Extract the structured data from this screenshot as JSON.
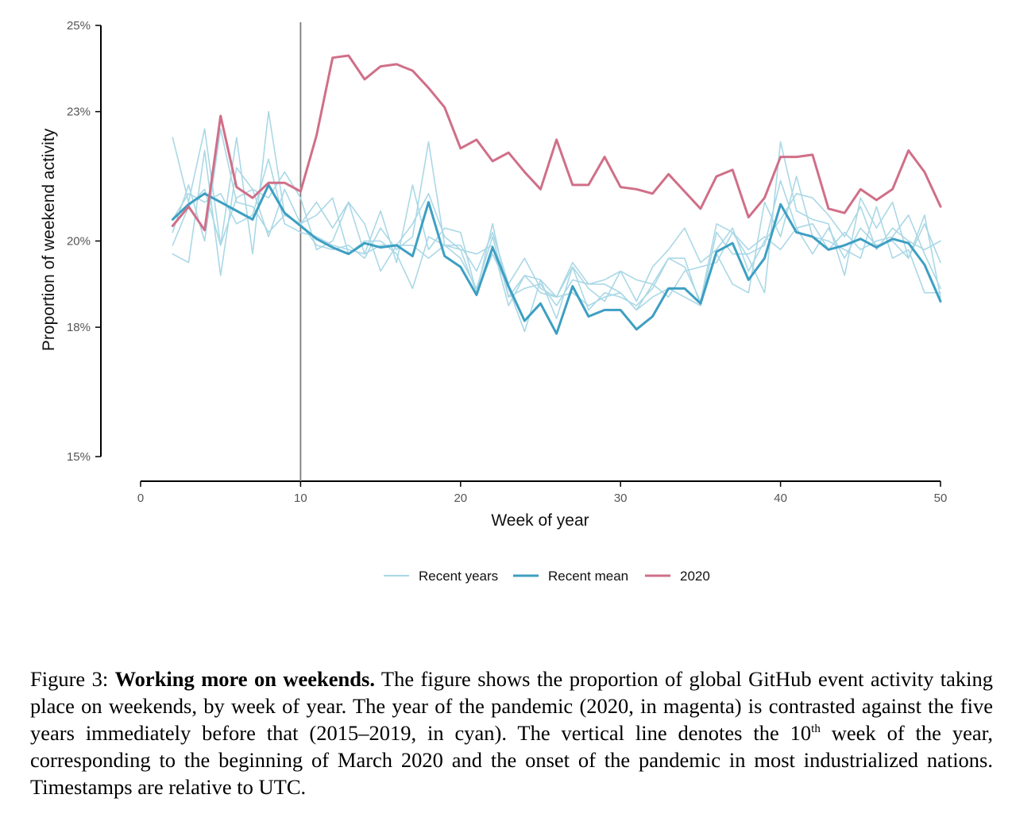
{
  "chart_data": {
    "type": "line",
    "x": [
      2,
      3,
      4,
      5,
      6,
      7,
      8,
      9,
      10,
      11,
      12,
      13,
      14,
      15,
      16,
      17,
      18,
      19,
      20,
      21,
      22,
      23,
      24,
      25,
      26,
      27,
      28,
      29,
      30,
      31,
      32,
      33,
      34,
      35,
      36,
      37,
      38,
      39,
      40,
      41,
      42,
      43,
      44,
      45,
      46,
      47,
      48,
      49,
      50
    ],
    "xlabel": "Week of year",
    "ylabel": "Proportion of weekend activity",
    "x_ticks": [
      0,
      10,
      20,
      30,
      40,
      50
    ],
    "x_tick_labels": [
      "0",
      "10",
      "20",
      "30",
      "40",
      "50"
    ],
    "y_ticks": [
      15,
      18,
      20,
      23,
      25
    ],
    "y_tick_labels": [
      "15%",
      "18%",
      "20%",
      "23%",
      "25%"
    ],
    "xlim": [
      0,
      50
    ],
    "ylim": [
      15,
      25
    ],
    "vline": 10,
    "legend_position": "bottom",
    "series": [
      {
        "name": "Recent years",
        "color": "#aad8e6",
        "width": 1.6,
        "values": [
          22.4,
          20.9,
          22.6,
          19.9,
          22.4,
          19.7,
          23.0,
          20.6,
          20.4,
          20.9,
          20.3,
          20.9,
          19.7,
          20.7,
          19.5,
          21.3,
          19.8,
          20.3,
          20.2,
          18.8,
          19.7,
          18.9,
          17.9,
          19.1,
          18.2,
          19.4,
          18.4,
          18.8,
          18.7,
          18.5,
          18.9,
          19.6,
          19.4,
          18.6,
          20.4,
          20.2,
          19.6,
          18.8,
          22.3,
          20.7,
          20.5,
          20.4,
          19.2,
          21.0,
          20.3,
          20.9,
          19.6,
          20.6,
          18.7
        ]
      },
      {
        "name": "Recent years",
        "color": "#aad8e6",
        "width": 1.6,
        "values": [
          19.7,
          19.5,
          22.1,
          19.2,
          21.7,
          21.2,
          21.0,
          21.6,
          21.0,
          19.8,
          20.0,
          20.9,
          20.4,
          19.3,
          19.9,
          20.4,
          21.1,
          20.1,
          19.8,
          19.7,
          19.9,
          18.5,
          19.2,
          18.8,
          18.7,
          18.8,
          18.5,
          18.7,
          18.8,
          18.4,
          18.7,
          18.9,
          18.7,
          18.5,
          19.7,
          19.0,
          18.8,
          20.9,
          20.1,
          21.5,
          20.1,
          20.0,
          19.8,
          19.6,
          20.8,
          19.6,
          19.8,
          18.8,
          18.8
        ]
      },
      {
        "name": "Recent years",
        "color": "#aad8e6",
        "width": 1.6,
        "values": [
          20.2,
          21.3,
          20.0,
          22.6,
          20.9,
          20.8,
          20.2,
          20.6,
          20.4,
          19.9,
          19.8,
          19.9,
          19.6,
          20.3,
          19.8,
          20.1,
          22.3,
          19.9,
          19.6,
          18.9,
          20.1,
          18.7,
          19.2,
          19.1,
          18.7,
          19.4,
          18.9,
          18.6,
          19.3,
          18.6,
          19.4,
          19.8,
          20.3,
          19.5,
          19.8,
          20.3,
          19.3,
          20.0,
          20.5,
          21.1,
          21.0,
          20.6,
          20.1,
          20.8,
          19.8,
          20.3,
          20.0,
          19.8,
          20.0
        ]
      },
      {
        "name": "Recent years",
        "color": "#aad8e6",
        "width": 1.6,
        "values": [
          19.9,
          20.8,
          21.2,
          19.9,
          21.0,
          21.2,
          20.1,
          21.2,
          20.4,
          20.6,
          21.0,
          19.7,
          20.0,
          20.0,
          19.7,
          18.9,
          20.1,
          19.9,
          19.9,
          19.3,
          20.2,
          19.0,
          19.6,
          18.9,
          18.7,
          19.5,
          19.0,
          19.0,
          18.8,
          18.4,
          19.0,
          18.7,
          19.3,
          19.4,
          19.5,
          20.2,
          19.8,
          20.1,
          19.8,
          20.3,
          19.7,
          20.3,
          19.6,
          20.3,
          19.9,
          20.0,
          19.6,
          20.4,
          19.5
        ]
      },
      {
        "name": "Recent years",
        "color": "#aad8e6",
        "width": 1.6,
        "values": [
          20.5,
          21.1,
          20.9,
          21.1,
          20.4,
          20.6,
          21.9,
          20.4,
          20.2,
          20.1,
          19.9,
          19.8,
          19.7,
          19.9,
          19.9,
          19.9,
          19.6,
          19.9,
          19.8,
          18.8,
          20.4,
          18.7,
          18.9,
          19.0,
          18.5,
          19.1,
          19.0,
          19.1,
          19.3,
          19.1,
          19.0,
          19.6,
          19.6,
          18.5,
          20.2,
          19.7,
          19.7,
          19.9,
          21.4,
          20.3,
          20.4,
          19.8,
          20.2,
          19.8,
          20.0,
          20.1,
          20.6,
          19.7,
          18.9
        ]
      },
      {
        "name": "Recent mean",
        "color": "#3d9fc2",
        "width": 3,
        "values": [
          20.5,
          20.85,
          21.1,
          20.9,
          20.7,
          20.5,
          21.3,
          20.65,
          20.35,
          20.05,
          19.85,
          19.7,
          19.95,
          19.85,
          19.9,
          19.65,
          20.9,
          19.65,
          19.4,
          18.75,
          19.85,
          18.95,
          18.15,
          18.55,
          17.85,
          18.95,
          18.25,
          18.4,
          18.4,
          17.95,
          18.25,
          18.9,
          18.9,
          18.55,
          19.75,
          19.95,
          19.1,
          19.6,
          20.85,
          20.2,
          20.1,
          19.8,
          19.9,
          20.05,
          19.85,
          20.05,
          19.95,
          19.45,
          18.6
        ]
      },
      {
        "name": "2020",
        "color": "#d06f88",
        "width": 3,
        "values": [
          20.35,
          20.8,
          20.25,
          22.9,
          21.25,
          21.0,
          21.35,
          21.35,
          21.15,
          22.45,
          24.25,
          24.3,
          23.75,
          24.05,
          24.1,
          23.95,
          23.55,
          23.1,
          22.15,
          22.35,
          21.85,
          22.05,
          21.6,
          21.2,
          22.35,
          21.3,
          21.3,
          21.95,
          21.25,
          21.2,
          21.1,
          21.55,
          21.15,
          20.75,
          21.5,
          21.65,
          20.55,
          21.0,
          21.95,
          21.95,
          22.0,
          20.75,
          20.65,
          21.2,
          20.95,
          21.2,
          22.1,
          21.6,
          20.8
        ]
      }
    ],
    "legend": [
      {
        "label": "Recent years",
        "color": "#aad8e6"
      },
      {
        "label": "Recent mean",
        "color": "#3d9fc2"
      },
      {
        "label": "2020",
        "color": "#d06f88"
      }
    ]
  },
  "caption": {
    "figure_label": "Figure 3:",
    "bold_title": "Working more on weekends.",
    "text_main": " The figure shows the proportion of global GitHub event activity taking place on weekends, by week of year. The year of the pandemic (2020, in magenta) is contrasted against the five years immediately before that (2015–2019, in cyan). The vertical line denotes the 10",
    "superscript": "th",
    "text_end": " week of the year, corresponding to the beginning of March 2020 and the onset of the pandemic in most industrialized nations. Timestamps are relative to UTC."
  }
}
